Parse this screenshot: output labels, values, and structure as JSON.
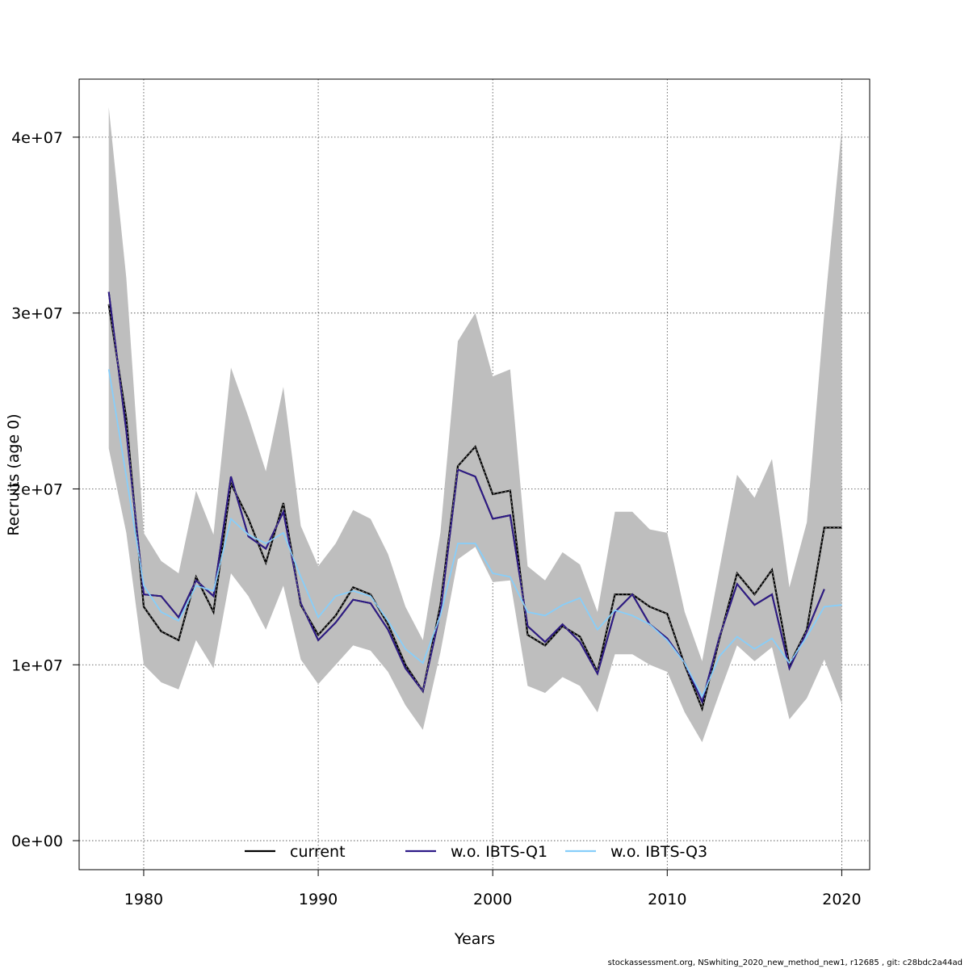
{
  "chart_data": {
    "type": "line",
    "xlabel": "Years",
    "ylabel": "Recruits (age 0)",
    "xlim": [
      1976.3,
      1981.6
    ],
    "ylim": [
      -1650000,
      43300000
    ],
    "xticks": [
      1980,
      1990,
      2000,
      2010,
      2020
    ],
    "xtick_labels": [
      "1980",
      "1990",
      "2000",
      "2010",
      "2020"
    ],
    "yticks": [
      0,
      10000000,
      20000000,
      30000000,
      40000000
    ],
    "ytick_labels": [
      "0e+00",
      "1e+07",
      "2e+07",
      "3e+07",
      "4e+07"
    ],
    "grid": true,
    "legend_position": "bottom",
    "x": [
      1978,
      1979,
      1980,
      1981,
      1982,
      1983,
      1984,
      1985,
      1986,
      1987,
      1988,
      1989,
      1990,
      1991,
      1992,
      1993,
      1994,
      1995,
      1996,
      1997,
      1998,
      1999,
      2000,
      2001,
      2002,
      2003,
      2004,
      2005,
      2006,
      2007,
      2008,
      2009,
      2010,
      2011,
      2012,
      2013,
      2014,
      2015,
      2016,
      2017,
      2018,
      2019,
      2020
    ],
    "band": {
      "upper": [
        41700000,
        32000000,
        17500000,
        15900000,
        15200000,
        19900000,
        17400000,
        26900000,
        24100000,
        21000000,
        25800000,
        17900000,
        15600000,
        16900000,
        18800000,
        18300000,
        16300000,
        13300000,
        11400000,
        17500000,
        28400000,
        30000000,
        26400000,
        26800000,
        15600000,
        14800000,
        16400000,
        15700000,
        13000000,
        18700000,
        18700000,
        17700000,
        17500000,
        13000000,
        10200000,
        15500000,
        20800000,
        19500000,
        21700000,
        14400000,
        18100000,
        30000000,
        40500000
      ],
      "lower": [
        22300000,
        17500000,
        10000000,
        9000000,
        8600000,
        11400000,
        9800000,
        15200000,
        13900000,
        12000000,
        14500000,
        10300000,
        8900000,
        10000000,
        11100000,
        10800000,
        9600000,
        7700000,
        6300000,
        10700000,
        16000000,
        16700000,
        14700000,
        14800000,
        8800000,
        8400000,
        9300000,
        8800000,
        7300000,
        10600000,
        10600000,
        10000000,
        9600000,
        7300000,
        5600000,
        8400000,
        11100000,
        10200000,
        11000000,
        6900000,
        8100000,
        10300000,
        7800000
      ]
    },
    "series": [
      {
        "name": "current",
        "color": "#000000",
        "dash": "solid",
        "values": [
          30500000,
          24000000,
          13300000,
          11900000,
          11400000,
          15000000,
          13000000,
          20300000,
          18300000,
          15800000,
          19200000,
          13400000,
          11700000,
          12800000,
          14400000,
          14000000,
          12300000,
          10000000,
          8500000,
          13400000,
          21300000,
          22400000,
          19700000,
          19900000,
          11700000,
          11100000,
          12200000,
          11600000,
          9600000,
          14000000,
          14000000,
          13300000,
          12900000,
          10000000,
          7500000,
          11500000,
          15200000,
          14000000,
          15400000,
          10000000,
          12000000,
          17800000,
          17800000
        ]
      },
      {
        "name": "w.o. IBTS-Q1",
        "color": "#2e1a87",
        "dash": "dashed",
        "values": [
          31200000,
          23300000,
          14000000,
          13900000,
          12700000,
          14800000,
          13900000,
          20700000,
          17300000,
          16600000,
          18700000,
          13500000,
          11400000,
          12400000,
          13700000,
          13500000,
          12000000,
          9800000,
          8500000,
          13000000,
          21100000,
          20700000,
          18300000,
          18500000,
          12200000,
          11300000,
          12300000,
          11300000,
          9500000,
          13000000,
          14000000,
          12300000,
          11500000,
          10100000,
          7900000,
          11600000,
          14600000,
          13400000,
          14000000,
          9800000,
          11900000,
          14300000,
          null
        ]
      },
      {
        "name": "w.o. IBTS-Q3",
        "color": "#87cefa",
        "dash": "dotted",
        "values": [
          26800000,
          20700000,
          14500000,
          13000000,
          12500000,
          14500000,
          14200000,
          18300000,
          17400000,
          16900000,
          17500000,
          15000000,
          12700000,
          13900000,
          14200000,
          13900000,
          12500000,
          10900000,
          10100000,
          12800000,
          16900000,
          16900000,
          15200000,
          15000000,
          13000000,
          12800000,
          13400000,
          13800000,
          12000000,
          13100000,
          12800000,
          12300000,
          11400000,
          10100000,
          8200000,
          10500000,
          11600000,
          10900000,
          11500000,
          10100000,
          11600000,
          13300000,
          13400000
        ]
      }
    ]
  },
  "footer": {
    "text": "stockassessment.org, NSwhiting_2020_new_method_new1, r12685 , git: c28bdc2a44ad"
  }
}
